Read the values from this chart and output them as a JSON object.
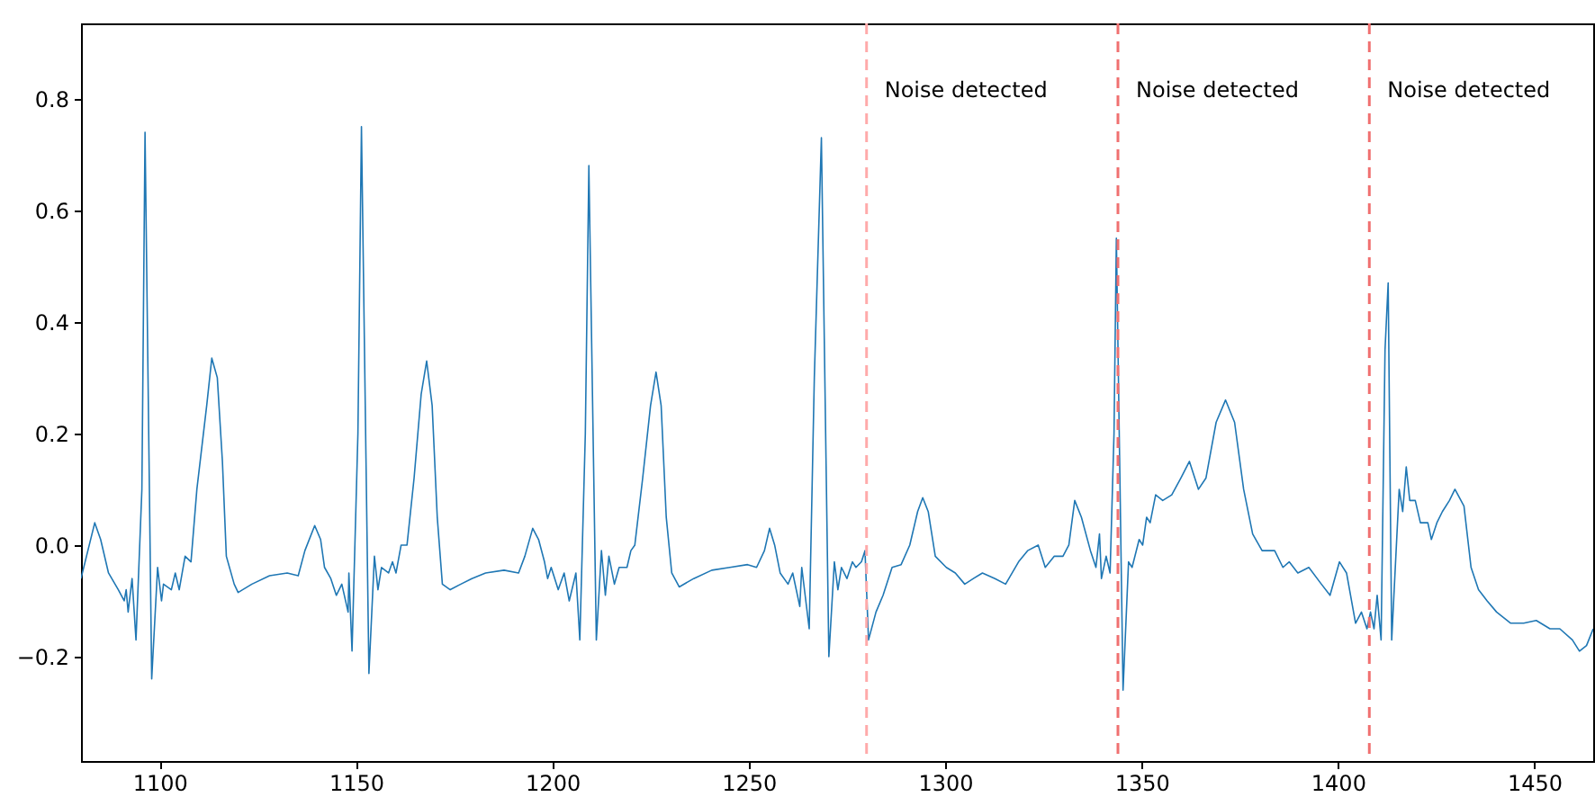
{
  "chart_data": {
    "type": "line",
    "x": [
      1080,
      1083.5,
      1085,
      1087,
      1089.5,
      1091,
      1091.5,
      1092,
      1093,
      1094,
      1095.5,
      1096.3,
      1098,
      1099.5,
      1100.5,
      1101,
      1103,
      1104,
      1105,
      1106.5,
      1108,
      1109.5,
      1112,
      1113.3,
      1114.7,
      1116,
      1117,
      1119,
      1120,
      1123.5,
      1128,
      1132.5,
      1135.3,
      1137,
      1139.5,
      1141,
      1142,
      1143.6,
      1145,
      1146.4,
      1148,
      1148.2,
      1149,
      1150.5,
      1151.4,
      1153.3,
      1154.7,
      1155.6,
      1156.5,
      1158.3,
      1159.3,
      1160.2,
      1161.5,
      1163,
      1164.8,
      1166.6,
      1168,
      1169.4,
      1170.7,
      1172,
      1174,
      1176.7,
      1179.5,
      1183,
      1187.7,
      1191.4,
      1193,
      1195,
      1196.5,
      1198,
      1198.8,
      1199.7,
      1201.5,
      1203,
      1204.3,
      1206,
      1207,
      1208.4,
      1209.3,
      1211.2,
      1212.5,
      1213.5,
      1214.4,
      1215.8,
      1217,
      1219,
      1220,
      1221,
      1223,
      1225,
      1226.4,
      1227.7,
      1229,
      1230.4,
      1232.3,
      1236,
      1240.6,
      1245.2,
      1249.7,
      1252,
      1254,
      1255.3,
      1256.6,
      1258,
      1260,
      1261.2,
      1263,
      1263.5,
      1265.4,
      1266.7,
      1268.5,
      1270.4,
      1271.8,
      1272.7,
      1273.6,
      1275,
      1276.4,
      1277.3,
      1278.7,
      1279.6,
      1280.5,
      1282.4,
      1284.2,
      1286.5,
      1288.8,
      1291,
      1293,
      1294.3,
      1295.7,
      1297.5,
      1300.3,
      1302.6,
      1305,
      1307.2,
      1309.5,
      1312.7,
      1315.4,
      1318.7,
      1321,
      1323.7,
      1325.5,
      1327.8,
      1330,
      1331.5,
      1333,
      1334.7,
      1337,
      1338.4,
      1339.3,
      1339.8,
      1341,
      1342,
      1343,
      1343.6,
      1345.3,
      1346.7,
      1347.6,
      1349.4,
      1350.3,
      1351.3,
      1352.2,
      1353.6,
      1355.4,
      1357.7,
      1360,
      1362.2,
      1364.5,
      1366.4,
      1369,
      1371.4,
      1373.7,
      1376,
      1378.3,
      1380.7,
      1383.9,
      1386,
      1387.6,
      1389.8,
      1392.6,
      1395.8,
      1398,
      1400.4,
      1402.2,
      1404.5,
      1406,
      1407.4,
      1408.3,
      1409.2,
      1410,
      1411,
      1412,
      1412.8,
      1413.7,
      1415.6,
      1416.5,
      1417.4,
      1418.3,
      1419.7,
      1421,
      1422.9,
      1423.8,
      1425.2,
      1426.6,
      1428.4,
      1429.8,
      1432.1,
      1433.9,
      1435.8,
      1438,
      1440.4,
      1444,
      1447.3,
      1450.5,
      1454,
      1456.5,
      1459.7,
      1461.5,
      1463.3,
      1465
    ],
    "series": [
      {
        "color": "#1f77b4",
        "values": [
          -0.06,
          0.04,
          0.01,
          -0.05,
          -0.08,
          -0.1,
          -0.08,
          -0.12,
          -0.06,
          -0.17,
          0.1,
          0.74,
          -0.24,
          -0.04,
          -0.1,
          -0.07,
          -0.08,
          -0.05,
          -0.08,
          -0.02,
          -0.03,
          0.1,
          0.25,
          0.335,
          0.3,
          0.15,
          -0.02,
          -0.07,
          -0.085,
          -0.07,
          -0.055,
          -0.05,
          -0.055,
          -0.01,
          0.035,
          0.01,
          -0.04,
          -0.06,
          -0.09,
          -0.07,
          -0.12,
          -0.05,
          -0.19,
          0.2,
          0.75,
          -0.23,
          -0.02,
          -0.08,
          -0.04,
          -0.05,
          -0.03,
          -0.05,
          0.0,
          0.0,
          0.12,
          0.27,
          0.33,
          0.25,
          0.05,
          -0.07,
          -0.08,
          -0.07,
          -0.06,
          -0.05,
          -0.045,
          -0.05,
          -0.02,
          0.03,
          0.01,
          -0.03,
          -0.06,
          -0.04,
          -0.08,
          -0.05,
          -0.1,
          -0.05,
          -0.17,
          0.2,
          0.68,
          -0.17,
          -0.01,
          -0.09,
          -0.02,
          -0.07,
          -0.04,
          -0.04,
          -0.01,
          0.0,
          0.12,
          0.25,
          0.31,
          0.25,
          0.05,
          -0.05,
          -0.075,
          -0.06,
          -0.045,
          -0.04,
          -0.035,
          -0.04,
          -0.01,
          0.03,
          0.0,
          -0.05,
          -0.07,
          -0.05,
          -0.11,
          -0.04,
          -0.15,
          0.3,
          0.73,
          -0.2,
          -0.03,
          -0.08,
          -0.04,
          -0.06,
          -0.03,
          -0.04,
          -0.03,
          -0.01,
          -0.17,
          -0.12,
          -0.09,
          -0.04,
          -0.035,
          0.0,
          0.06,
          0.085,
          0.06,
          -0.02,
          -0.04,
          -0.05,
          -0.07,
          -0.06,
          -0.05,
          -0.06,
          -0.07,
          -0.03,
          -0.01,
          0.0,
          -0.04,
          -0.02,
          -0.02,
          0.0,
          0.08,
          0.05,
          -0.01,
          -0.04,
          0.02,
          -0.06,
          -0.02,
          -0.05,
          0.2,
          0.55,
          -0.26,
          -0.03,
          -0.04,
          0.01,
          0.0,
          0.05,
          0.04,
          0.09,
          0.08,
          0.09,
          0.12,
          0.15,
          0.1,
          0.12,
          0.22,
          0.26,
          0.22,
          0.1,
          0.02,
          -0.01,
          -0.01,
          -0.04,
          -0.03,
          -0.05,
          -0.04,
          -0.07,
          -0.09,
          -0.03,
          -0.05,
          -0.14,
          -0.12,
          -0.15,
          -0.12,
          -0.15,
          -0.09,
          -0.17,
          0.35,
          0.47,
          -0.17,
          0.1,
          0.06,
          0.14,
          0.08,
          0.08,
          0.04,
          0.04,
          0.01,
          0.04,
          0.06,
          0.08,
          0.1,
          0.07,
          -0.04,
          -0.08,
          -0.1,
          -0.12,
          -0.14,
          -0.14,
          -0.135,
          -0.15,
          -0.15,
          -0.17,
          -0.19,
          -0.18,
          -0.15
        ]
      }
    ],
    "xlim": [
      1080,
      1465
    ],
    "xticks": [
      1100,
      1150,
      1200,
      1250,
      1300,
      1350,
      1400,
      1450
    ],
    "ylim": [
      -0.387,
      0.935
    ],
    "yticks": [
      {
        "value": -0.2,
        "label": "−0.2"
      },
      {
        "value": 0,
        "label": "0.0"
      },
      0.2,
      0.4,
      0.6,
      0.8
    ],
    "ref_lines": [
      {
        "axis": "x",
        "value": 1280,
        "label": "Noise detected",
        "color": "#ffaaaa",
        "line_style": "dashed"
      },
      {
        "axis": "x",
        "value": 1344,
        "label": "Noise detected",
        "color": "#f07070",
        "line_style": "dashed"
      },
      {
        "axis": "x",
        "value": 1408,
        "label": "Noise detected",
        "color": "#f07070",
        "line_style": "dashed"
      }
    ],
    "grid": false,
    "marker": "none",
    "line_style": "solid"
  }
}
